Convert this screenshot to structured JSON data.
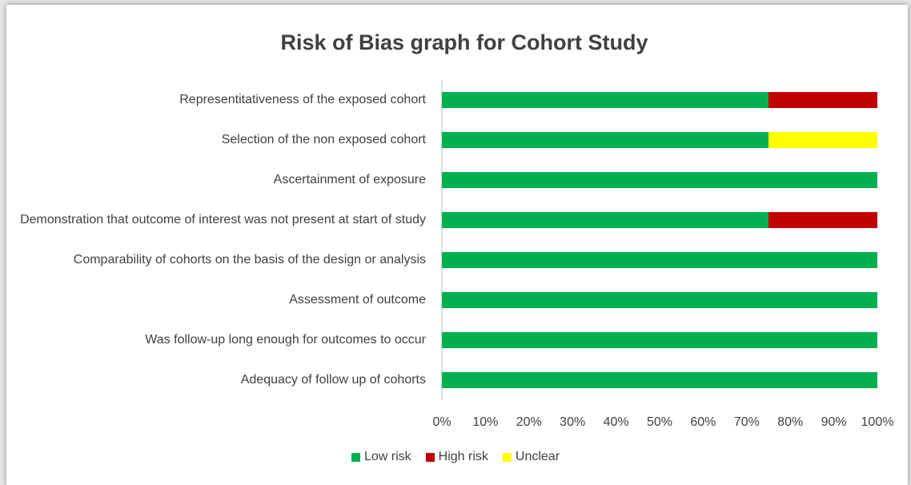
{
  "chart_data": {
    "type": "stacked-bar-horizontal",
    "title": "Risk of Bias graph for Cohort Study",
    "categories": [
      "Representitativeness of the exposed cohort",
      "Selection of the non exposed cohort",
      "Ascertainment of exposure",
      "Demonstration that outcome of interest was not present at start of study",
      "Comparability of cohorts on the basis of the design or analysis",
      "Assessment of outcome",
      "Was follow-up long enough for outcomes to occur",
      "Adequacy of follow up of cohorts"
    ],
    "series": [
      {
        "name": "Low risk",
        "color": "#00b050",
        "values": [
          75,
          75,
          100,
          75,
          100,
          100,
          100,
          100
        ]
      },
      {
        "name": "High risk",
        "color": "#c00000",
        "values": [
          25,
          0,
          0,
          25,
          0,
          0,
          0,
          0
        ]
      },
      {
        "name": "Unclear",
        "color": "#ffff00",
        "values": [
          0,
          25,
          0,
          0,
          0,
          0,
          0,
          0
        ]
      }
    ],
    "xlim": [
      0,
      100
    ],
    "xticks": [
      {
        "value": 0,
        "label": "0%"
      },
      {
        "value": 10,
        "label": "10%"
      },
      {
        "value": 20,
        "label": "20%"
      },
      {
        "value": 30,
        "label": "30%"
      },
      {
        "value": 40,
        "label": "40%"
      },
      {
        "value": 50,
        "label": "50%"
      },
      {
        "value": 60,
        "label": "60%"
      },
      {
        "value": 70,
        "label": "70%"
      },
      {
        "value": 80,
        "label": "80%"
      },
      {
        "value": 90,
        "label": "90%"
      },
      {
        "value": 100,
        "label": "100%"
      }
    ],
    "legend": "bottom"
  }
}
